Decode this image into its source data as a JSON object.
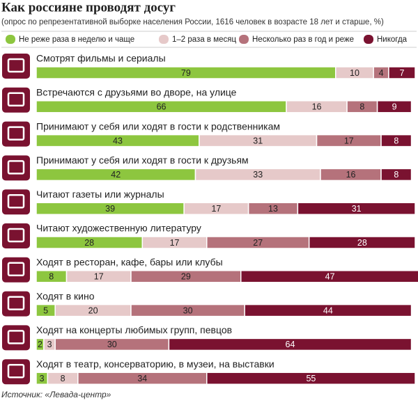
{
  "chart_data": {
    "type": "stacked-bar",
    "title": "Как россияне проводят досуг",
    "subtitle": "(опрос по репрезентативной выборке населения России, 1616 человек в возрасте 18 лет и старше, %)",
    "source": "Источник: «Левада-центр»",
    "categories": [
      "Смотрят фильмы и сериалы",
      "Встречаются с друзьями во дворе, на улице",
      "Принимают у себя или ходят в гости к родственникам",
      "Принимают у себя или ходят в гости к друзьям",
      "Читают газеты или журналы",
      "Читают художественную литературу",
      "Ходят в ресторан, кафе, бары или клубы",
      "Ходят в кино",
      "Ходят на концерты любимых групп, певцов",
      "Ходят в театр, консерваторию, в музеи, на выставки"
    ],
    "series": [
      {
        "name": "Не реже раза в неделю и чаще",
        "color": "#8dc63f",
        "values": [
          79,
          66,
          43,
          42,
          39,
          28,
          8,
          5,
          2,
          3
        ]
      },
      {
        "name": "1–2 раза в месяц",
        "color": "#e6c9c9",
        "values": [
          10,
          16,
          31,
          33,
          17,
          17,
          17,
          20,
          3,
          8
        ]
      },
      {
        "name": "Несколько раз в год и реже",
        "color": "#b5727b",
        "values": [
          4,
          8,
          17,
          16,
          13,
          27,
          29,
          30,
          30,
          34
        ]
      },
      {
        "name": "Никогда",
        "color": "#7a1230",
        "values": [
          7,
          9,
          8,
          8,
          31,
          28,
          47,
          44,
          64,
          55
        ]
      }
    ],
    "xlim": [
      0,
      100
    ]
  }
}
